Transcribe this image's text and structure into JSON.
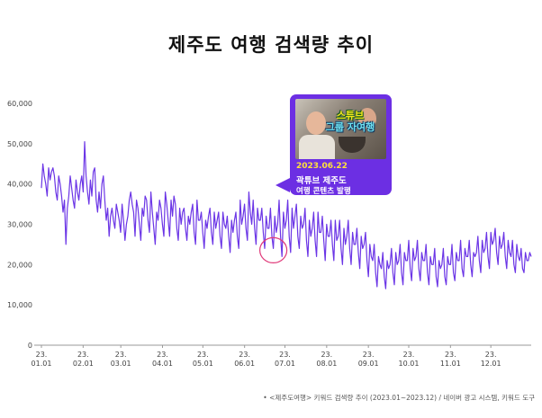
{
  "title": "제주도 여행 검색량 추이",
  "colors": {
    "line": "#6b35e6",
    "callout": "#6c2fe3",
    "highlight": "#e03a7a",
    "date": "#ffe23a"
  },
  "callout": {
    "thumbnail_text_1": "스튜브",
    "thumbnail_text_2": "그룹 자여행",
    "date": "2023.06.22",
    "line1": "곽튜브 제주도",
    "line2": "여행 콘텐츠 발행"
  },
  "source": "• <제주도여행> 키워드 검색량 추이 (2023.01~2023.12) / 네이버 광고 시스템, 키워드 도구",
  "chart_data": {
    "type": "line",
    "title": "제주도 여행 검색량 추이",
    "xlabel": "",
    "ylabel": "",
    "ylim": [
      0,
      60000
    ],
    "yticks": [
      "0",
      "10,000",
      "20,000",
      "30,000",
      "40,000",
      "50,000",
      "60,000"
    ],
    "xticks": [
      [
        "23.",
        "01.01"
      ],
      [
        "23.",
        "02.01"
      ],
      [
        "23.",
        "03.01"
      ],
      [
        "23.",
        "04.01"
      ],
      [
        "23.",
        "05.01"
      ],
      [
        "23.",
        "06.01"
      ],
      [
        "23.",
        "07.01"
      ],
      [
        "23.",
        "08.01"
      ],
      [
        "23.",
        "09.01"
      ],
      [
        "23.",
        "10.01"
      ],
      [
        "23.",
        "11.01"
      ],
      [
        "23.",
        "12.01"
      ]
    ],
    "x_start": "2023-01-01",
    "highlight_day": 172,
    "series": [
      {
        "name": "제주도여행",
        "values": [
          39000,
          45000,
          42000,
          40000,
          37000,
          44000,
          41000,
          43000,
          44000,
          42000,
          38000,
          36000,
          42000,
          40000,
          37000,
          33000,
          36000,
          25000,
          34000,
          37000,
          42000,
          39000,
          36000,
          34000,
          41000,
          38000,
          36000,
          40000,
          42000,
          38000,
          50500,
          42000,
          38000,
          35000,
          41000,
          37000,
          43000,
          44000,
          36000,
          33000,
          38000,
          34000,
          40000,
          42000,
          36000,
          31000,
          34000,
          27000,
          32000,
          34000,
          31000,
          29000,
          35000,
          33000,
          31000,
          28000,
          35000,
          31000,
          26000,
          30000,
          32000,
          36000,
          38000,
          35000,
          33000,
          27000,
          36000,
          34000,
          30000,
          26000,
          34000,
          32000,
          37000,
          36000,
          31000,
          28000,
          38000,
          33000,
          29000,
          25000,
          33000,
          31000,
          36000,
          34000,
          30000,
          27000,
          38000,
          35000,
          31000,
          27000,
          36000,
          32000,
          37000,
          35000,
          29000,
          26000,
          34000,
          30000,
          33000,
          34000,
          29000,
          26000,
          32000,
          30000,
          33000,
          35000,
          28000,
          25000,
          36000,
          31000,
          31000,
          33000,
          28000,
          24000,
          31000,
          29000,
          32000,
          34000,
          28000,
          25000,
          33000,
          29000,
          31000,
          33000,
          27000,
          24000,
          33000,
          30000,
          29000,
          32000,
          27000,
          23000,
          31000,
          28000,
          31000,
          33000,
          27000,
          24000,
          36000,
          30000,
          32000,
          35000,
          29000,
          26000,
          38000,
          33000,
          30000,
          36000,
          29000,
          25000,
          34000,
          31000,
          31000,
          34000,
          28000,
          24000,
          32000,
          29000,
          29000,
          34000,
          27000,
          24000,
          32000,
          28000,
          30000,
          36000,
          27000,
          22000,
          33000,
          29000,
          31000,
          36000,
          27000,
          23000,
          34000,
          29000,
          32000,
          35000,
          27000,
          24000,
          32000,
          29000,
          30000,
          34000,
          26000,
          22000,
          31000,
          27000,
          29000,
          33000,
          26000,
          22000,
          33000,
          28000,
          28000,
          32000,
          26000,
          21000,
          30000,
          27000,
          27000,
          31000,
          25000,
          21000,
          31000,
          26000,
          27000,
          31000,
          24000,
          20000,
          29000,
          25000,
          27000,
          31000,
          24000,
          20000,
          28000,
          25000,
          25000,
          29000,
          23000,
          19000,
          27000,
          24000,
          25000,
          28000,
          21000,
          17000,
          25000,
          22000,
          21000,
          25000,
          18000,
          14500,
          22000,
          20000,
          19000,
          23000,
          17000,
          14000,
          21000,
          19000,
          20000,
          24000,
          18000,
          15000,
          23000,
          20000,
          21000,
          25000,
          18000,
          15000,
          23000,
          21000,
          21000,
          26000,
          19000,
          16000,
          24000,
          21000,
          22000,
          26000,
          19000,
          16000,
          23000,
          21000,
          21000,
          25000,
          18000,
          15000,
          22000,
          20000,
          20000,
          24000,
          17000,
          14500,
          21000,
          19000,
          20000,
          24000,
          17000,
          15000,
          22000,
          20000,
          20000,
          25000,
          18000,
          16000,
          23000,
          21000,
          21000,
          26000,
          19000,
          17000,
          24000,
          22000,
          22000,
          26000,
          20000,
          17000,
          23000,
          22000,
          23000,
          27000,
          21000,
          18000,
          26000,
          23000,
          24000,
          28000,
          22000,
          19000,
          28000,
          25000,
          26000,
          29000,
          23000,
          20000,
          27000,
          24000,
          25000,
          28000,
          22000,
          19000,
          26000,
          23000,
          22000,
          26000,
          20000,
          18000,
          25000,
          22000,
          21000,
          24000,
          19000,
          18000,
          23000,
          21000,
          21000,
          23000,
          22000
        ]
      }
    ]
  }
}
